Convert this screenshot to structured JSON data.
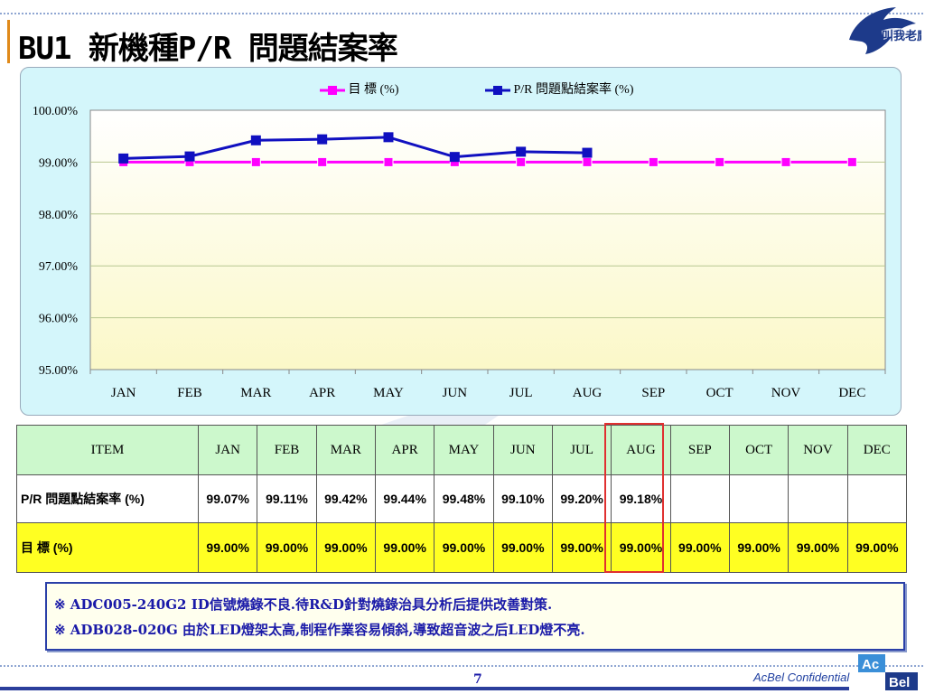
{
  "slide": {
    "title": "BU1 新機種P/R 問題結案率",
    "logo_text": "叫我老鷹",
    "page_number": "7",
    "confidential": "AcBel Confidential",
    "brand_top": "Ac",
    "brand_bottom": "Bel"
  },
  "colors": {
    "target_series": "#ff00ff",
    "actual_series": "#1010c0",
    "plot_bg_top": "#ffffff",
    "plot_bg_bottom": "#fbf8c8",
    "table_header": "#ccf8cc",
    "target_row": "#ffff22",
    "highlight_box": "#e03030",
    "note_text": "#1a1aa8"
  },
  "chart_data": {
    "type": "line",
    "title": "",
    "categories": [
      "JAN",
      "FEB",
      "MAR",
      "APR",
      "MAY",
      "JUN",
      "JUL",
      "AUG",
      "SEP",
      "OCT",
      "NOV",
      "DEC"
    ],
    "series": [
      {
        "name": "目 標 (%)",
        "values": [
          99.0,
          99.0,
          99.0,
          99.0,
          99.0,
          99.0,
          99.0,
          99.0,
          99.0,
          99.0,
          99.0,
          99.0
        ],
        "color": "#ff00ff"
      },
      {
        "name": "P/R 問題點結案率 (%)",
        "values": [
          99.07,
          99.11,
          99.42,
          99.44,
          99.48,
          99.1,
          99.2,
          99.18,
          null,
          null,
          null,
          null
        ],
        "color": "#1010c0"
      }
    ],
    "ylim": [
      95.0,
      100.0
    ],
    "yticks": [
      "100.00%",
      "99.00%",
      "98.00%",
      "97.00%",
      "96.00%",
      "95.00%"
    ],
    "grid": true,
    "legend": "top-center"
  },
  "table": {
    "header_label": "ITEM",
    "months": [
      "JAN",
      "FEB",
      "MAR",
      "APR",
      "MAY",
      "JUN",
      "JUL",
      "AUG",
      "SEP",
      "OCT",
      "NOV",
      "DEC"
    ],
    "actual_label": "P/R 問題點結案率 (%)",
    "actual": [
      "99.07%",
      "99.11%",
      "99.42%",
      "99.44%",
      "99.48%",
      "99.10%",
      "99.20%",
      "99.18%",
      "",
      "",
      "",
      ""
    ],
    "target_label": "目 標 (%)",
    "target": [
      "99.00%",
      "99.00%",
      "99.00%",
      "99.00%",
      "99.00%",
      "99.00%",
      "99.00%",
      "99.00%",
      "99.00%",
      "99.00%",
      "99.00%",
      "99.00%"
    ],
    "highlighted_month": "AUG"
  },
  "notes": [
    "※ ADC005-240G2  ID信號燒錄不良.待R&D針對燒錄治具分析后提供改善對策.",
    "※ ADB028-020G    由於LED燈架太高,制程作業容易傾斜,導致超音波之后LED燈不亮."
  ]
}
